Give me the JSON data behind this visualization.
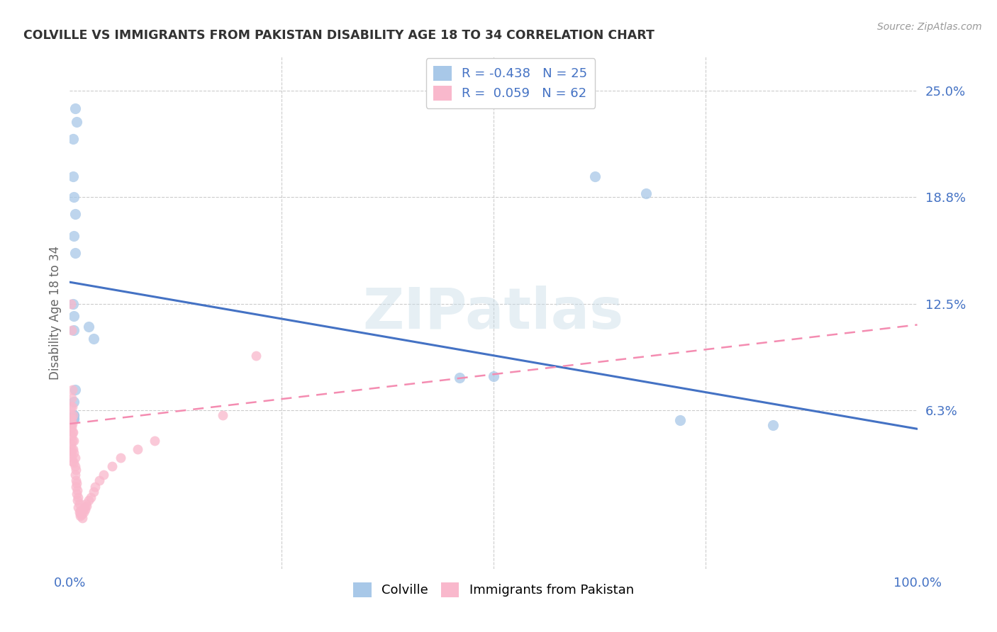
{
  "title": "COLVILLE VS IMMIGRANTS FROM PAKISTAN DISABILITY AGE 18 TO 34 CORRELATION CHART",
  "source": "Source: ZipAtlas.com",
  "ylabel": "Disability Age 18 to 34",
  "xlim": [
    0.0,
    1.0
  ],
  "ylim": [
    -0.03,
    0.27
  ],
  "ytick_positions": [
    0.063,
    0.125,
    0.188,
    0.25
  ],
  "ytick_labels": [
    "6.3%",
    "12.5%",
    "18.8%",
    "25.0%"
  ],
  "background_color": "#ffffff",
  "watermark": "ZIPatlas",
  "colville_color": "#a8c8e8",
  "pakistan_color": "#f9b8cc",
  "colville_line_color": "#4472c4",
  "pakistan_line_color": "#f48cb1",
  "tick_color": "#4472c4",
  "R_colville": -0.438,
  "N_colville": 25,
  "R_pakistan": 0.059,
  "N_pakistan": 62,
  "colville_trend_x": [
    0.0,
    1.0
  ],
  "colville_trend_y": [
    0.138,
    0.052
  ],
  "pakistan_trend_x": [
    0.0,
    1.0
  ],
  "pakistan_trend_y": [
    0.055,
    0.113
  ],
  "colville_x": [
    0.006,
    0.008,
    0.004,
    0.004,
    0.005,
    0.006,
    0.005,
    0.006,
    0.004,
    0.005,
    0.005,
    0.006,
    0.005,
    0.005,
    0.005,
    0.022,
    0.028,
    0.005,
    0.005,
    0.62,
    0.68,
    0.46,
    0.5,
    0.72,
    0.83
  ],
  "colville_y": [
    0.24,
    0.232,
    0.222,
    0.2,
    0.188,
    0.178,
    0.165,
    0.155,
    0.125,
    0.118,
    0.11,
    0.075,
    0.068,
    0.06,
    0.058,
    0.112,
    0.105,
    0.06,
    0.058,
    0.2,
    0.19,
    0.082,
    0.083,
    0.057,
    0.054
  ],
  "pakistan_x": [
    0.001,
    0.001,
    0.002,
    0.001,
    0.002,
    0.003,
    0.002,
    0.003,
    0.001,
    0.002,
    0.001,
    0.002,
    0.003,
    0.001,
    0.002,
    0.003,
    0.002,
    0.003,
    0.004,
    0.003,
    0.004,
    0.005,
    0.004,
    0.005,
    0.006,
    0.005,
    0.006,
    0.007,
    0.006,
    0.007,
    0.008,
    0.007,
    0.009,
    0.008,
    0.01,
    0.009,
    0.011,
    0.01,
    0.012,
    0.011,
    0.013,
    0.012,
    0.015,
    0.014,
    0.016,
    0.015,
    0.018,
    0.017,
    0.02,
    0.019,
    0.022,
    0.025,
    0.028,
    0.03,
    0.035,
    0.04,
    0.05,
    0.06,
    0.08,
    0.1,
    0.18,
    0.22
  ],
  "pakistan_y": [
    0.065,
    0.06,
    0.058,
    0.055,
    0.053,
    0.05,
    0.048,
    0.045,
    0.043,
    0.04,
    0.038,
    0.035,
    0.033,
    0.125,
    0.11,
    0.075,
    0.07,
    0.065,
    0.06,
    0.055,
    0.05,
    0.045,
    0.04,
    0.038,
    0.035,
    0.032,
    0.03,
    0.028,
    0.025,
    0.022,
    0.02,
    0.018,
    0.016,
    0.014,
    0.012,
    0.01,
    0.008,
    0.006,
    0.004,
    0.003,
    0.002,
    0.001,
    0.0,
    0.002,
    0.003,
    0.004,
    0.005,
    0.006,
    0.007,
    0.008,
    0.01,
    0.012,
    0.015,
    0.018,
    0.022,
    0.025,
    0.03,
    0.035,
    0.04,
    0.045,
    0.06,
    0.095
  ]
}
